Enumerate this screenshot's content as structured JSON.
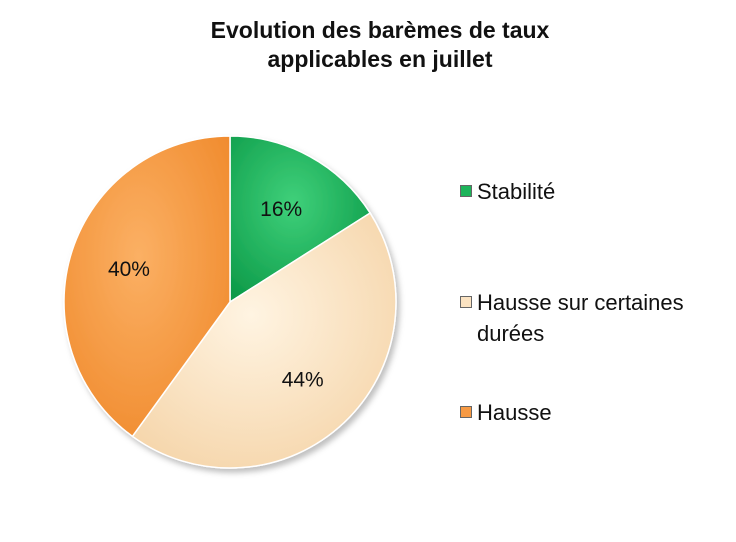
{
  "chart_data": {
    "type": "pie",
    "title_lines": [
      "Evolution des barèmes de taux",
      "applicables en juillet"
    ],
    "slices": [
      {
        "name": "Stabilité",
        "value": 16,
        "label": "16%",
        "color": "#1db45a"
      },
      {
        "name": "Hausse sur certaines durées",
        "value": 44,
        "label": "44%",
        "color": "#fbe3c2"
      },
      {
        "name": "Hausse",
        "value": 40,
        "label": "40%",
        "color": "#f79a44"
      }
    ],
    "legend_position": "right"
  }
}
